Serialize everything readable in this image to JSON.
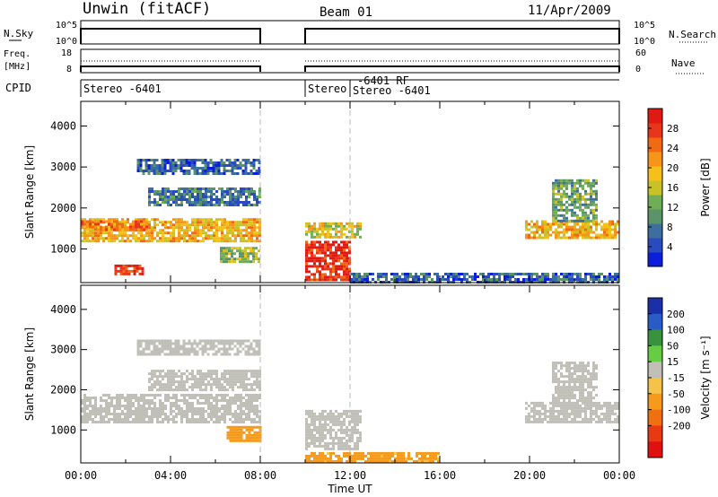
{
  "header": {
    "radar": "Unwin (fitACF)",
    "beam": "Beam 01",
    "date": "11/Apr/2009"
  },
  "strips": {
    "nsky_label": "N.Sky",
    "nsky_ticks": [
      "10^5",
      "10^0"
    ],
    "nsearch_label": "N.Search",
    "nsearch_ticks": [
      "10^5",
      "10^0"
    ],
    "freq_label_1": "Freq.",
    "freq_label_2": "[MHz]",
    "freq_ticks": [
      "18",
      "8"
    ],
    "nave_label": "Nave",
    "nave_ticks": [
      "60",
      "0"
    ],
    "cpid_label": "CPID",
    "cpid_segments": [
      {
        "text": "Stereo -6401",
        "start": 0.0,
        "end": 8.0
      },
      {
        "text": "Stereo",
        "start": 10.0,
        "end": 12.0
      },
      {
        "text": "-6401 RF",
        "start": 12.0,
        "end": 12.0
      },
      {
        "text": "Stereo -6401",
        "start": 12.0,
        "end": 24.0
      }
    ]
  },
  "chart_data": [
    {
      "type": "heatmap",
      "name": "power",
      "ylabel": "Slant Range [km]",
      "ylim": [
        180,
        4600
      ],
      "yticks": [
        1000,
        2000,
        3000,
        4000
      ],
      "xlabel": "Time UT",
      "xlim": [
        0,
        24
      ],
      "xticks": [
        "00:00",
        "04:00",
        "08:00",
        "12:00",
        "16:00",
        "20:00",
        "00:00"
      ],
      "colorbar": {
        "label": "Power [dB]",
        "ticks": [
          "4",
          "8",
          "12",
          "16",
          "20",
          "24",
          "28"
        ],
        "tick_values": [
          4,
          8,
          12,
          16,
          20,
          24,
          28
        ],
        "range": [
          0,
          32
        ],
        "colors": [
          "#0a1edc",
          "#2a4bc0",
          "#3d6f9e",
          "#5a9468",
          "#6fae56",
          "#c9c227",
          "#f5c118",
          "#f89418",
          "#f06a14",
          "#e8361a",
          "#e01a12"
        ]
      },
      "data_gaps": [
        [
          8.0,
          10.0
        ]
      ],
      "regions": [
        {
          "t": [
            0.0,
            8.0
          ],
          "r": [
            1200,
            1750
          ],
          "value": 20
        },
        {
          "t": [
            0.0,
            3.0
          ],
          "r": [
            1450,
            1700
          ],
          "value": 24
        },
        {
          "t": [
            1.5,
            2.8
          ],
          "r": [
            420,
            620
          ],
          "value": 28
        },
        {
          "t": [
            3.0,
            8.0
          ],
          "r": [
            2100,
            2500
          ],
          "value": 8
        },
        {
          "t": [
            2.5,
            8.0
          ],
          "r": [
            2850,
            3200
          ],
          "value": 6
        },
        {
          "t": [
            6.2,
            8.0
          ],
          "r": [
            700,
            1050
          ],
          "value": 14
        },
        {
          "t": [
            10.0,
            12.0
          ],
          "r": [
            250,
            1200
          ],
          "value": 29
        },
        {
          "t": [
            10.0,
            12.5
          ],
          "r": [
            1300,
            1650
          ],
          "value": 17
        },
        {
          "t": [
            12.0,
            24.0
          ],
          "r": [
            200,
            420
          ],
          "value": 6
        },
        {
          "t": [
            19.8,
            24.0
          ],
          "r": [
            1250,
            1700
          ],
          "value": 20
        },
        {
          "t": [
            21.0,
            23.0
          ],
          "r": [
            1700,
            2700
          ],
          "value": 12
        }
      ]
    },
    {
      "type": "heatmap",
      "name": "velocity",
      "ylabel": "Slant Range [km]",
      "ylim": [
        180,
        4600
      ],
      "yticks": [
        1000,
        2000,
        3000,
        4000
      ],
      "xlabel": "Time UT",
      "xlim": [
        0,
        24
      ],
      "xticks": [
        "00:00",
        "04:00",
        "08:00",
        "12:00",
        "16:00",
        "20:00",
        "00:00"
      ],
      "colorbar": {
        "label": "Velocity [m s⁻¹]",
        "ticks": [
          "200",
          "100",
          "50",
          "15",
          "-15",
          "-50",
          "-100",
          "-200"
        ],
        "colors": [
          "#1a2fa8",
          "#2a5cc8",
          "#38923e",
          "#66cc44",
          "#c0c0b8",
          "#f5c24a",
          "#f59a1a",
          "#f07010",
          "#e83a12",
          "#e01010"
        ]
      },
      "data_gaps": [
        [
          8.0,
          10.0
        ]
      ],
      "regions": [
        {
          "t": [
            0.0,
            8.0
          ],
          "r": [
            1200,
            1900
          ],
          "value": 0
        },
        {
          "t": [
            3.0,
            8.0
          ],
          "r": [
            2000,
            2500
          ],
          "value": 0
        },
        {
          "t": [
            2.5,
            8.0
          ],
          "r": [
            2900,
            3250
          ],
          "value": 0
        },
        {
          "t": [
            6.5,
            8.0
          ],
          "r": [
            700,
            1100
          ],
          "value": -80
        },
        {
          "t": [
            10.0,
            12.5
          ],
          "r": [
            500,
            1500
          ],
          "value": 0
        },
        {
          "t": [
            10.0,
            16.0
          ],
          "r": [
            200,
            450
          ],
          "value": -60
        },
        {
          "t": [
            19.8,
            24.0
          ],
          "r": [
            1200,
            1700
          ],
          "value": 0
        },
        {
          "t": [
            21.0,
            23.0
          ],
          "r": [
            1700,
            2700
          ],
          "value": 0
        }
      ]
    }
  ]
}
